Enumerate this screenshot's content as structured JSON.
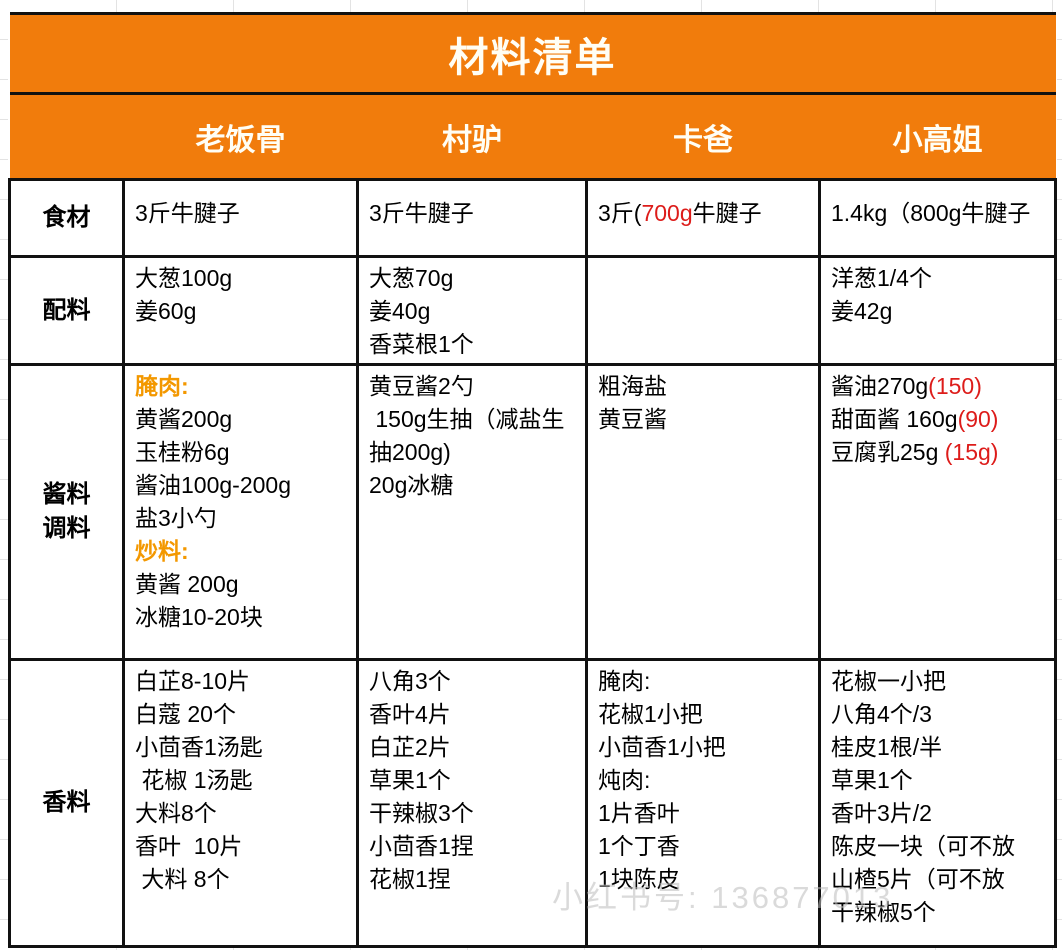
{
  "title": "材料清单",
  "watermark": "小红书号: 136877013",
  "columns": [
    "老饭骨",
    "村驴",
    "卡爸",
    "小高姐"
  ],
  "colors": {
    "header_bg": "#f17c0c",
    "accent_orange": "#f39800",
    "alert_red": "#dd1c1a",
    "border": "#111111"
  },
  "rows": [
    {
      "label": [
        "食材"
      ],
      "cells": [
        [
          [
            {
              "t": "3斤牛腱子"
            }
          ]
        ],
        [
          [
            {
              "t": "3斤牛腱子"
            }
          ]
        ],
        [
          [
            {
              "t": "3斤("
            },
            {
              "t": "700g",
              "s": "red"
            },
            {
              "t": "牛腱子"
            }
          ]
        ],
        [
          [
            {
              "t": "1.4kg（800g牛腱子"
            }
          ]
        ]
      ]
    },
    {
      "label": [
        "配料"
      ],
      "cells": [
        [
          [
            {
              "t": "大葱100g"
            }
          ],
          [
            {
              "t": "姜60g"
            }
          ]
        ],
        [
          [
            {
              "t": "大葱70g"
            }
          ],
          [
            {
              "t": "姜40g"
            }
          ],
          [
            {
              "t": "香菜根1个"
            }
          ]
        ],
        [],
        [
          [
            {
              "t": "洋葱1/4个"
            }
          ],
          [
            {
              "t": "姜42g"
            }
          ]
        ]
      ]
    },
    {
      "label": [
        "酱料",
        "调料"
      ],
      "cells": [
        [
          [
            {
              "t": "腌肉:",
              "s": "orange"
            }
          ],
          [
            {
              "t": "黄酱200g"
            }
          ],
          [
            {
              "t": "玉桂粉6g"
            }
          ],
          [
            {
              "t": "酱油100g-200g"
            }
          ],
          [
            {
              "t": "盐3小勺"
            }
          ],
          [
            {
              "t": "炒料:",
              "s": "orange"
            }
          ],
          [
            {
              "t": "黄酱 200g"
            }
          ],
          [
            {
              "t": "冰糖10-20块"
            }
          ]
        ],
        [
          [
            {
              "t": "黄豆酱2勺"
            }
          ],
          [
            {
              "t": " 150g生抽（减盐生抽200g)"
            }
          ],
          [
            {
              "t": "20g冰糖"
            }
          ]
        ],
        [
          [
            {
              "t": "粗海盐"
            }
          ],
          [
            {
              "t": "黄豆酱"
            }
          ]
        ],
        [
          [
            {
              "t": "酱油270g"
            },
            {
              "t": "(150)",
              "s": "red"
            }
          ],
          [
            {
              "t": "甜面酱 160g"
            },
            {
              "t": "(90)",
              "s": "red"
            }
          ],
          [
            {
              "t": "豆腐乳25g "
            },
            {
              "t": "(15g)",
              "s": "red"
            }
          ]
        ]
      ]
    },
    {
      "label": [
        "香料"
      ],
      "cells": [
        [
          [
            {
              "t": "白芷8-10片"
            }
          ],
          [
            {
              "t": "白蔻 20个"
            }
          ],
          [
            {
              "t": "小茴香1汤匙"
            }
          ],
          [
            {
              "t": " 花椒 1汤匙"
            }
          ],
          [
            {
              "t": "大料8个"
            }
          ],
          [
            {
              "t": "香叶  10片"
            }
          ],
          [
            {
              "t": " 大料 8个"
            }
          ]
        ],
        [
          [
            {
              "t": "八角3个"
            }
          ],
          [
            {
              "t": "香叶4片"
            }
          ],
          [
            {
              "t": "白芷2片"
            }
          ],
          [
            {
              "t": "草果1个"
            }
          ],
          [
            {
              "t": "干辣椒3个"
            }
          ],
          [
            {
              "t": "小茴香1捏"
            }
          ],
          [
            {
              "t": "花椒1捏"
            }
          ]
        ],
        [
          [
            {
              "t": "腌肉:"
            }
          ],
          [
            {
              "t": "花椒1小把"
            }
          ],
          [
            {
              "t": "小茴香1小把"
            }
          ],
          [
            {
              "t": "炖肉:"
            }
          ],
          [
            {
              "t": "1片香叶"
            }
          ],
          [
            {
              "t": "1个丁香"
            }
          ],
          [
            {
              "t": "1块陈皮"
            }
          ]
        ],
        [
          [
            {
              "t": "花椒一小把"
            }
          ],
          [
            {
              "t": "八角4个/3"
            }
          ],
          [
            {
              "t": "桂皮1根/半"
            }
          ],
          [
            {
              "t": "草果1个"
            }
          ],
          [
            {
              "t": "香叶3片/2"
            }
          ],
          [
            {
              "t": "陈皮一块（可不放"
            }
          ],
          [
            {
              "t": "山楂5片（可不放"
            }
          ],
          [
            {
              "t": "干辣椒5个"
            }
          ]
        ]
      ]
    }
  ]
}
